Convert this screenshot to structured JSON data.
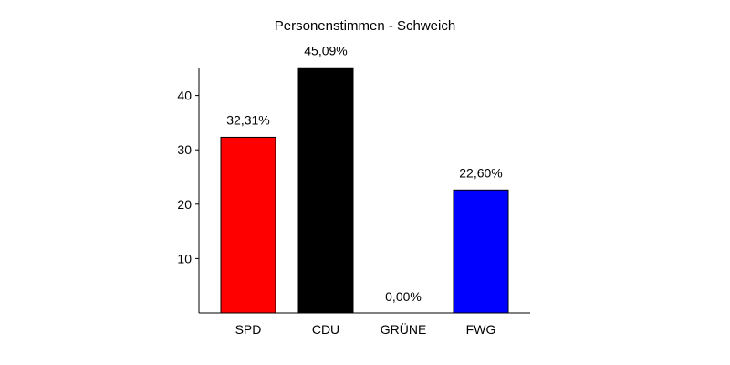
{
  "chart_data": {
    "type": "bar",
    "title": "Personenstimmen - Schweich",
    "categories": [
      "SPD",
      "CDU",
      "GRÜNE",
      "FWG"
    ],
    "values": [
      32.31,
      45.09,
      0.0,
      22.6
    ],
    "data_labels": [
      "32,31%",
      "45,09%",
      "0,00%",
      "22,60%"
    ],
    "colors": [
      "#ff0000",
      "#000000",
      "#00a000",
      "#0000ff"
    ],
    "y_ticks": [
      10,
      20,
      30,
      40
    ],
    "ylim": [
      0,
      45
    ],
    "grid": false,
    "xlabel": "",
    "ylabel": ""
  }
}
